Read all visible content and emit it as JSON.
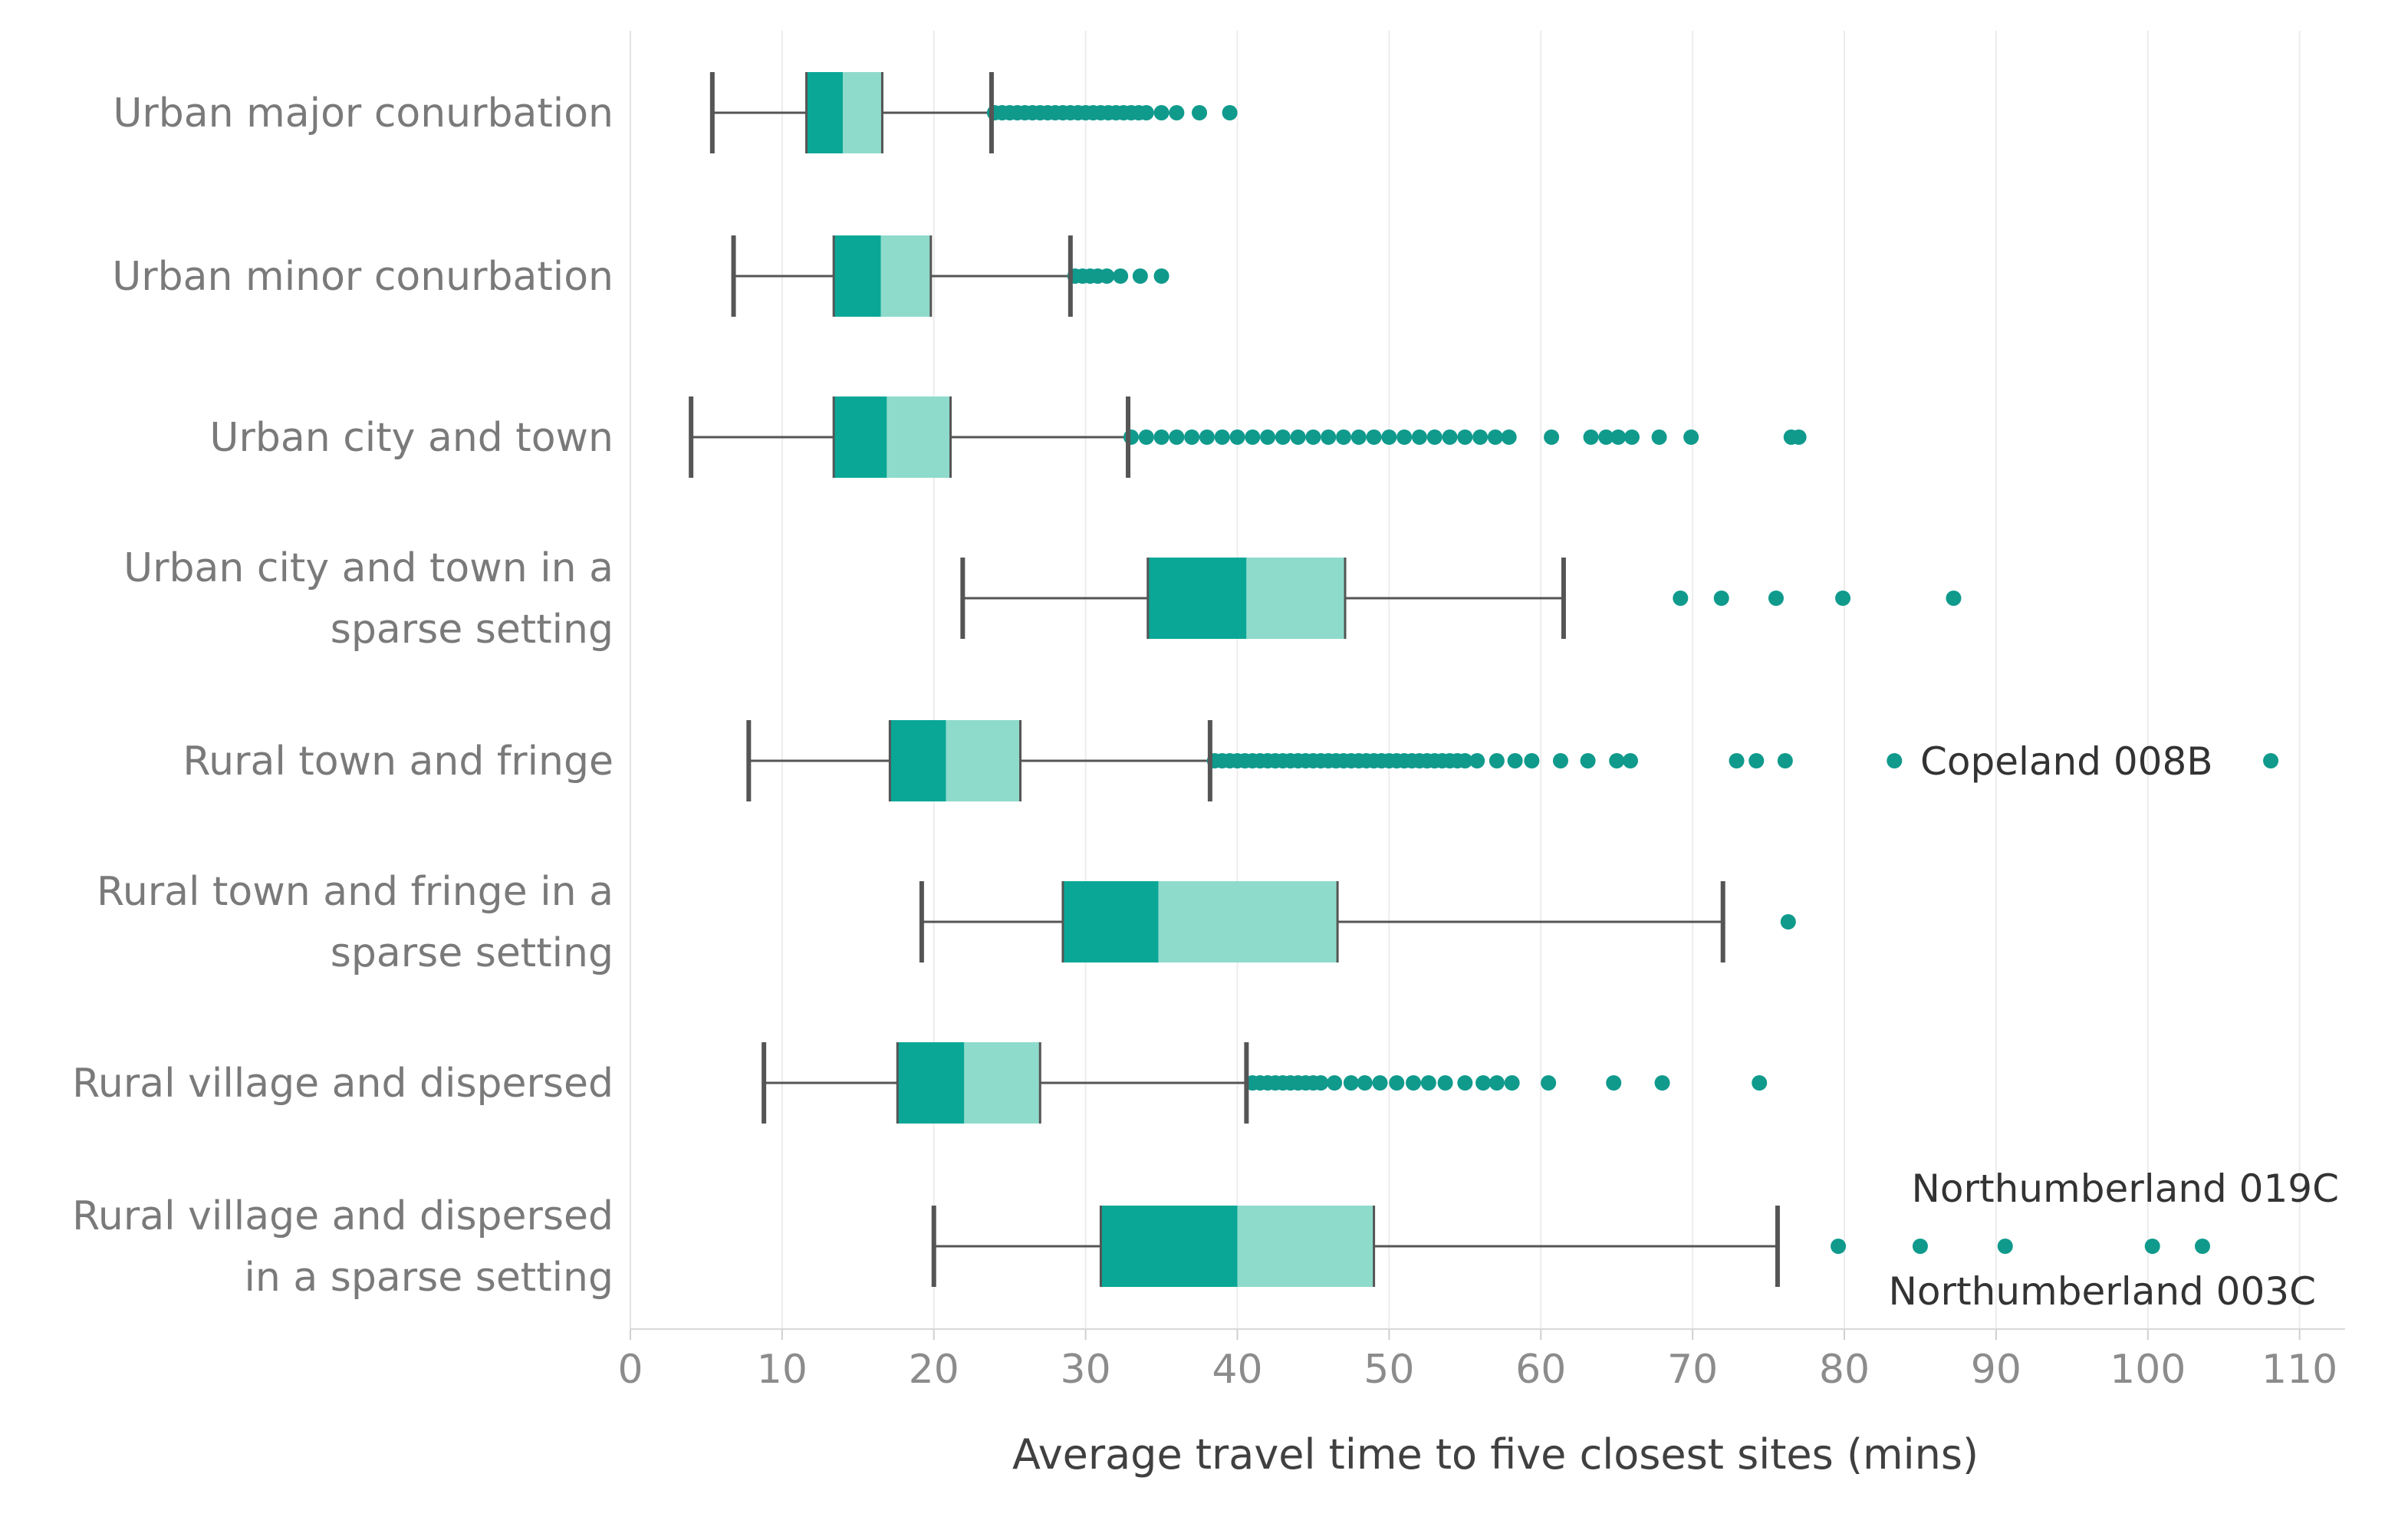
{
  "chart_data": {
    "type": "boxplot",
    "orientation": "horizontal",
    "xlabel": "Average travel time to five closest sites (mins)",
    "xlim": [
      0,
      113
    ],
    "xticks": [
      0,
      10,
      20,
      30,
      40,
      50,
      60,
      70,
      80,
      90,
      100,
      110
    ],
    "grid": "vertical",
    "colors": {
      "lower_box": "#0aa796",
      "upper_box": "#8edbcc",
      "outlier": "#0f9a8c",
      "whisker": "#555555",
      "grid": "#ececec"
    },
    "categories": [
      {
        "label_lines": [
          "Urban major conurbation"
        ],
        "whisker_low": 5.4,
        "q1": 11.6,
        "median": 14.0,
        "q3": 16.6,
        "whisker_high": 23.8,
        "outliers": [
          24,
          24.5,
          25,
          25.5,
          26,
          26.5,
          27,
          27.5,
          28,
          28.5,
          29,
          29.5,
          30,
          30.5,
          31,
          31.5,
          32,
          32.5,
          33,
          33.5,
          34,
          35,
          36,
          37.5,
          39.5
        ]
      },
      {
        "label_lines": [
          "Urban minor conurbation"
        ],
        "whisker_low": 6.8,
        "q1": 13.4,
        "median": 16.5,
        "q3": 19.8,
        "whisker_high": 29.0,
        "outliers": [
          29.3,
          29.8,
          30.3,
          30.8,
          31.4,
          32.3,
          33.6,
          35.0
        ]
      },
      {
        "label_lines": [
          "Urban city and town"
        ],
        "whisker_low": 4.0,
        "q1": 13.4,
        "median": 16.9,
        "q3": 21.1,
        "whisker_high": 32.8,
        "outliers": [
          33,
          34,
          35,
          36,
          37,
          38,
          39,
          40,
          41,
          42,
          43,
          44,
          45,
          46,
          47,
          48,
          49,
          50,
          51,
          52,
          53,
          54,
          55,
          56,
          57,
          57.9,
          60.7,
          63.3,
          64.3,
          65.1,
          66.0,
          67.8,
          69.9,
          76.5,
          77.0
        ]
      },
      {
        "label_lines": [
          "Urban city and town in a",
          "sparse setting"
        ],
        "whisker_low": 21.9,
        "q1": 34.1,
        "median": 40.6,
        "q3": 47.1,
        "whisker_high": 61.5,
        "outliers": [
          69.2,
          71.9,
          75.5,
          79.9,
          87.2
        ]
      },
      {
        "label_lines": [
          "Rural town and fringe"
        ],
        "whisker_low": 7.8,
        "q1": 17.1,
        "median": 20.8,
        "q3": 25.7,
        "whisker_high": 38.2,
        "outliers": [
          38.5,
          39,
          39.5,
          40,
          40.5,
          41,
          41.5,
          42,
          42.5,
          43,
          43.5,
          44,
          44.5,
          45,
          45.5,
          46,
          46.5,
          47,
          47.5,
          48,
          48.5,
          49,
          49.5,
          50,
          50.5,
          51,
          51.5,
          52,
          52.5,
          53,
          53.5,
          54,
          54.5,
          55,
          55.8,
          57.1,
          58.3,
          59.4,
          61.3,
          63.1,
          65.0,
          65.9,
          72.9,
          74.2,
          76.1,
          83.3,
          108.1
        ],
        "annotation": "Copeland 008B"
      },
      {
        "label_lines": [
          "Rural town and fringe in a",
          "sparse setting"
        ],
        "whisker_low": 19.2,
        "q1": 28.5,
        "median": 34.8,
        "q3": 46.6,
        "whisker_high": 72.0,
        "outliers": [
          76.3
        ]
      },
      {
        "label_lines": [
          "Rural village and dispersed"
        ],
        "whisker_low": 8.8,
        "q1": 17.6,
        "median": 22.0,
        "q3": 27.0,
        "whisker_high": 40.6,
        "outliers": [
          41,
          41.5,
          42,
          42.5,
          43,
          43.5,
          44,
          44.5,
          45,
          45.5,
          46.4,
          47.5,
          48.4,
          49.4,
          50.5,
          51.6,
          52.6,
          53.7,
          55.0,
          56.2,
          57.1,
          58.1,
          60.5,
          64.8,
          68.0,
          74.4
        ]
      },
      {
        "label_lines": [
          "Rural village and dispersed",
          "in a sparse setting"
        ],
        "whisker_low": 20.0,
        "q1": 31.0,
        "median": 40.0,
        "q3": 49.0,
        "whisker_high": 75.6,
        "outliers": [
          79.6,
          85.0,
          90.6,
          100.3,
          103.6
        ],
        "annotation_top": "Northumberland 019C",
        "annotation_bottom": "Northumberland 003C"
      }
    ]
  }
}
